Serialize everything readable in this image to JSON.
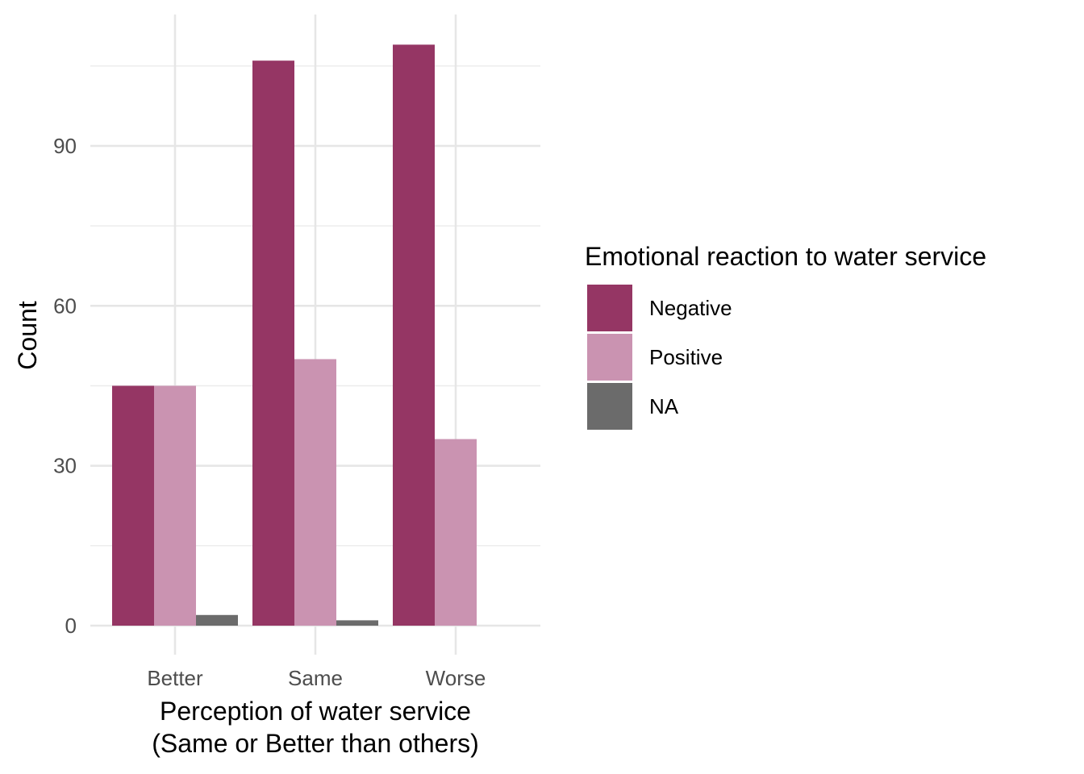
{
  "chart_data": {
    "type": "bar",
    "title": "",
    "xlabel_lines": [
      "Perception of water service",
      "(Same or Better than others)"
    ],
    "ylabel": "Count",
    "categories": [
      "Better",
      "Same",
      "Worse"
    ],
    "series": [
      {
        "name": "Negative",
        "color": "#953664",
        "values": [
          45,
          106,
          109
        ]
      },
      {
        "name": "Positive",
        "color": "#CA93B1",
        "values": [
          45,
          50,
          35
        ]
      },
      {
        "name": "NA",
        "color": "#6B6B6B",
        "values": [
          2,
          1,
          null
        ]
      }
    ],
    "yticks": [
      0,
      30,
      60,
      90
    ],
    "ylim": [
      -5,
      115
    ],
    "grid": true,
    "legend": {
      "title": "Emotional reaction to water service",
      "position": "right"
    }
  }
}
